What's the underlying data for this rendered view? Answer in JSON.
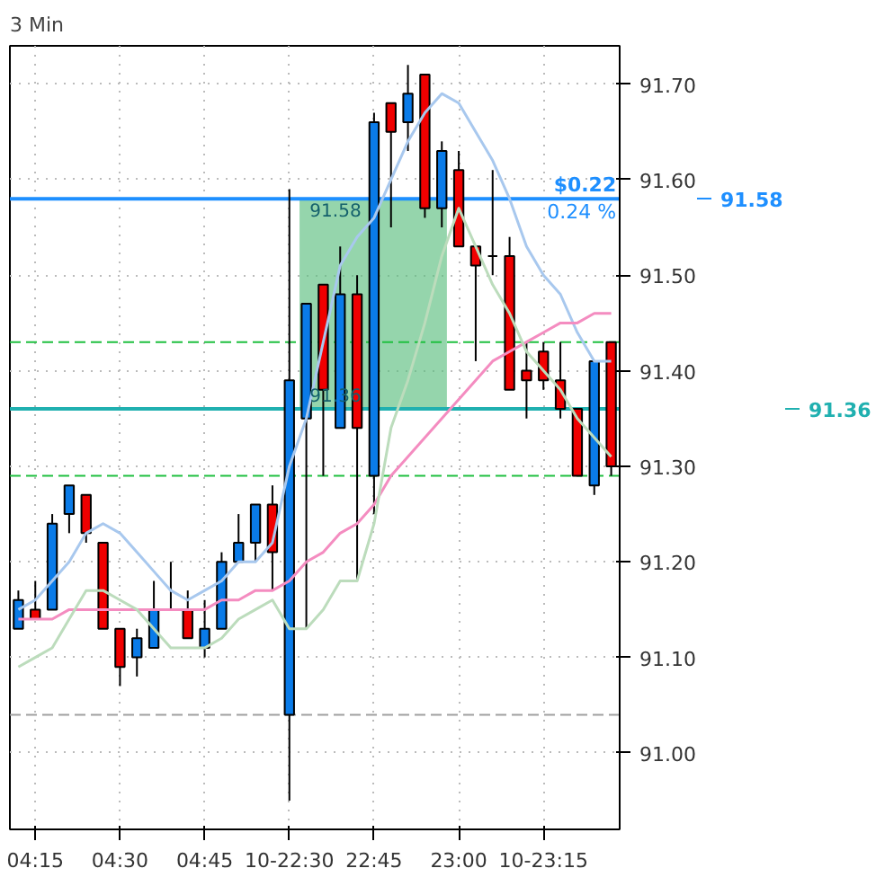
{
  "chart_data": {
    "type": "candlestick",
    "title": "3 Min",
    "categories": [
      null,
      "04:15",
      null,
      null,
      null,
      null,
      "04:30",
      null,
      null,
      null,
      null,
      "04:45",
      null,
      null,
      null,
      null,
      "10-22:30",
      null,
      null,
      null,
      null,
      "22:45",
      null,
      null,
      null,
      null,
      "23:00",
      null,
      null,
      null,
      null,
      "10-23:15",
      null,
      null,
      null,
      null
    ],
    "ohlc": [
      [
        91.13,
        91.17,
        91.13,
        91.16
      ],
      [
        91.15,
        91.18,
        91.14,
        91.14
      ],
      [
        91.15,
        91.25,
        91.15,
        91.24
      ],
      [
        91.25,
        91.28,
        91.23,
        91.28
      ],
      [
        91.27,
        91.27,
        91.22,
        91.23
      ],
      [
        91.22,
        91.22,
        91.13,
        91.13
      ],
      [
        91.13,
        91.13,
        91.07,
        91.09
      ],
      [
        91.1,
        91.13,
        91.08,
        91.12
      ],
      [
        91.11,
        91.18,
        91.11,
        91.15
      ],
      [
        91.15,
        91.2,
        91.15,
        91.15
      ],
      [
        91.15,
        91.17,
        91.12,
        91.12
      ],
      [
        91.11,
        91.16,
        91.1,
        91.13
      ],
      [
        91.13,
        91.21,
        91.13,
        91.2
      ],
      [
        91.2,
        91.25,
        91.2,
        91.22
      ],
      [
        91.22,
        91.26,
        91.2,
        91.26
      ],
      [
        91.26,
        91.28,
        91.17,
        91.21
      ],
      [
        91.04,
        91.59,
        90.95,
        91.39
      ],
      [
        91.35,
        91.47,
        91.13,
        91.47
      ],
      [
        91.49,
        91.49,
        91.29,
        91.38
      ],
      [
        91.34,
        91.53,
        91.34,
        91.48
      ],
      [
        91.48,
        91.5,
        91.18,
        91.34
      ],
      [
        91.29,
        91.67,
        91.25,
        91.66
      ],
      [
        91.68,
        91.68,
        91.55,
        91.65
      ],
      [
        91.66,
        91.72,
        91.63,
        91.69
      ],
      [
        91.71,
        91.71,
        91.56,
        91.57
      ],
      [
        91.57,
        91.64,
        91.55,
        91.63
      ],
      [
        91.61,
        91.63,
        91.53,
        91.53
      ],
      [
        91.53,
        91.53,
        91.41,
        91.51
      ],
      [
        91.52,
        91.61,
        91.5,
        91.52
      ],
      [
        91.52,
        91.54,
        91.38,
        91.38
      ],
      [
        91.4,
        91.43,
        91.35,
        91.39
      ],
      [
        91.42,
        91.43,
        91.38,
        91.39
      ],
      [
        91.39,
        91.43,
        91.35,
        91.36
      ],
      [
        91.36,
        91.36,
        91.29,
        91.29
      ],
      [
        91.28,
        91.41,
        91.27,
        91.41
      ],
      [
        91.43,
        91.43,
        91.29,
        91.3
      ]
    ],
    "colors": [
      "#0a7be8",
      "#f00000",
      "#0a7be8",
      "#0a7be8",
      "#f00000",
      "#f00000",
      "#f00000",
      "#0a7be8",
      "#0a7be8",
      "#000000",
      "#f00000",
      "#0a7be8",
      "#0a7be8",
      "#0a7be8",
      "#0a7be8",
      "#f00000",
      "#0a7be8",
      "#0a7be8",
      "#f00000",
      "#0a7be8",
      "#f00000",
      "#0a7be8",
      "#f00000",
      "#0a7be8",
      "#f00000",
      "#0a7be8",
      "#f00000",
      "#f00000",
      "#000000",
      "#f00000",
      "#f00000",
      "#f00000",
      "#f00000",
      "#f00000",
      "#0a7be8",
      "#f00000"
    ],
    "series": [
      {
        "type": "line",
        "color": "#a8c8ee",
        "values": [
          91.15,
          91.16,
          91.18,
          91.2,
          91.23,
          91.24,
          91.23,
          91.21,
          91.19,
          91.17,
          91.16,
          91.17,
          91.18,
          91.2,
          91.2,
          91.22,
          91.3,
          91.35,
          91.43,
          91.51,
          91.54,
          91.56,
          91.6,
          91.64,
          91.67,
          91.69,
          91.68,
          91.65,
          91.62,
          91.58,
          91.53,
          91.5,
          91.48,
          91.44,
          91.41,
          91.41
        ]
      },
      {
        "type": "line",
        "color": "#f48cc0",
        "values": [
          91.14,
          91.14,
          91.14,
          91.15,
          91.15,
          91.15,
          91.15,
          91.15,
          91.15,
          91.15,
          91.15,
          91.15,
          91.16,
          91.16,
          91.17,
          91.17,
          91.18,
          91.2,
          91.21,
          91.23,
          91.24,
          91.26,
          91.29,
          91.31,
          91.33,
          91.35,
          91.37,
          91.39,
          91.41,
          91.42,
          91.43,
          91.44,
          91.45,
          91.45,
          91.46,
          91.46
        ]
      },
      {
        "type": "line",
        "color": "#bcdcbc",
        "values": [
          91.09,
          91.1,
          91.11,
          91.14,
          91.17,
          91.17,
          91.16,
          91.15,
          91.13,
          91.11,
          91.11,
          91.11,
          91.12,
          91.14,
          91.15,
          91.16,
          91.13,
          91.13,
          91.15,
          91.18,
          91.18,
          91.24,
          91.34,
          91.39,
          91.45,
          91.52,
          91.57,
          91.53,
          91.49,
          91.46,
          91.42,
          91.4,
          91.38,
          91.35,
          91.33,
          91.31
        ]
      }
    ],
    "ylim": [
      90.92,
      91.74
    ],
    "yticks": [
      {
        "value": 91.0,
        "label": "91.00"
      },
      {
        "value": 91.1,
        "label": "91.10"
      },
      {
        "value": 91.2,
        "label": "91.20"
      },
      {
        "value": 91.3,
        "label": "91.30"
      },
      {
        "value": 91.4,
        "label": "91.40"
      },
      {
        "value": 91.5,
        "label": "91.50"
      },
      {
        "value": 91.6,
        "label": "91.60"
      },
      {
        "value": 91.7,
        "label": "91.70"
      }
    ],
    "ref_lines": [
      {
        "axis": "y",
        "value": 91.58,
        "label": "91.58",
        "color": "#1e8fff",
        "line_style": "solid"
      },
      {
        "axis": "y",
        "value": 91.36,
        "label": "91.36",
        "color": "#20b0b0",
        "line_style": "solid"
      },
      {
        "axis": "y",
        "value": 91.43,
        "color": "#20c040",
        "line_style": "dashed"
      },
      {
        "axis": "y",
        "value": 91.29,
        "color": "#20c040",
        "line_style": "dashed"
      },
      {
        "axis": "y",
        "value": 91.04,
        "color": "#a0a0a0",
        "line_style": "dashed"
      }
    ],
    "bands": [
      {
        "axis": "y",
        "from": 91.36,
        "to": 91.58,
        "color": "#5cbf80"
      }
    ],
    "annotations": [
      {
        "text": "91.58",
        "y": 91.58
      },
      {
        "text": "91.36",
        "y": 91.36
      },
      {
        "text": "$0.22",
        "y": 91.58
      },
      {
        "text": "0.24 %",
        "y": 91.58
      }
    ],
    "grid": true
  }
}
